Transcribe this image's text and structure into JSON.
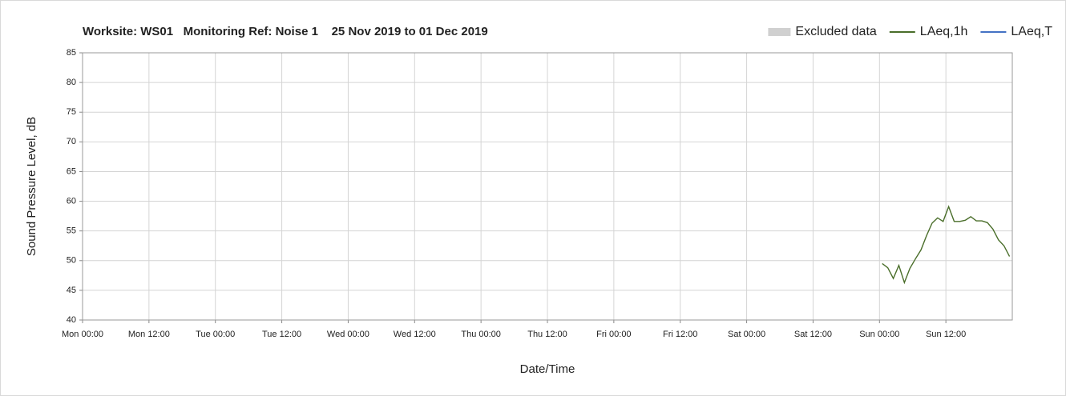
{
  "chart_data": {
    "type": "line",
    "title": "Worksite: WS01   Monitoring Ref: Noise 1    25 Nov 2019 to 01 Dec 2019",
    "xlabel": "Date/Time",
    "ylabel": "Sound Pressure Level, dB",
    "x": [
      144.5,
      145.5,
      146.5,
      147.5,
      148.5,
      149.5,
      150.5,
      151.5,
      152.5,
      153.5,
      154.5,
      155.5,
      156.5,
      157.5,
      158.5,
      159.5,
      160.5,
      161.5,
      162.5,
      163.5,
      164.5,
      165.5,
      166.5,
      167.5
    ],
    "series": [
      {
        "name": "Excluded data",
        "color": "#d0d0d0",
        "values": [
          null,
          null,
          null,
          null,
          null,
          null,
          null,
          null,
          null,
          null,
          null,
          null,
          null,
          null,
          null,
          null,
          null,
          null,
          null,
          null,
          null,
          null,
          null,
          null
        ]
      },
      {
        "name": "LAeq,1h",
        "color": "#4a6e2a",
        "values": [
          49.5,
          48.8,
          47,
          49.2,
          46.3,
          48.7,
          50.3,
          51.8,
          54.2,
          56.3,
          57.2,
          56.6,
          59.1,
          56.6,
          56.6,
          56.8,
          57.4,
          56.7,
          56.7,
          56.4,
          55.3,
          53.5,
          52.5,
          50.7
        ]
      },
      {
        "name": "LAeq,T",
        "color": "#4472c4",
        "values": [
          null,
          null,
          null,
          null,
          null,
          null,
          null,
          null,
          null,
          null,
          null,
          null,
          null,
          null,
          null,
          null,
          null,
          null,
          null,
          null,
          null,
          null,
          null,
          null
        ]
      }
    ],
    "xlim": [
      0,
      168
    ],
    "xticks": [
      {
        "value": 0,
        "label": "Mon 00:00"
      },
      {
        "value": 12,
        "label": "Mon 12:00"
      },
      {
        "value": 24,
        "label": "Tue 00:00"
      },
      {
        "value": 36,
        "label": "Tue 12:00"
      },
      {
        "value": 48,
        "label": "Wed 00:00"
      },
      {
        "value": 60,
        "label": "Wed 12:00"
      },
      {
        "value": 72,
        "label": "Thu 00:00"
      },
      {
        "value": 84,
        "label": "Thu 12:00"
      },
      {
        "value": 96,
        "label": "Fri 00:00"
      },
      {
        "value": 108,
        "label": "Fri 12:00"
      },
      {
        "value": 120,
        "label": "Sat 00:00"
      },
      {
        "value": 132,
        "label": "Sat 12:00"
      },
      {
        "value": 144,
        "label": "Sun 00:00"
      },
      {
        "value": 156,
        "label": "Sun 12:00"
      }
    ],
    "ylim": [
      40,
      85
    ],
    "yticks": [
      40,
      45,
      50,
      55,
      60,
      65,
      70,
      75,
      80,
      85
    ],
    "grid": true,
    "legend": "top-right"
  }
}
